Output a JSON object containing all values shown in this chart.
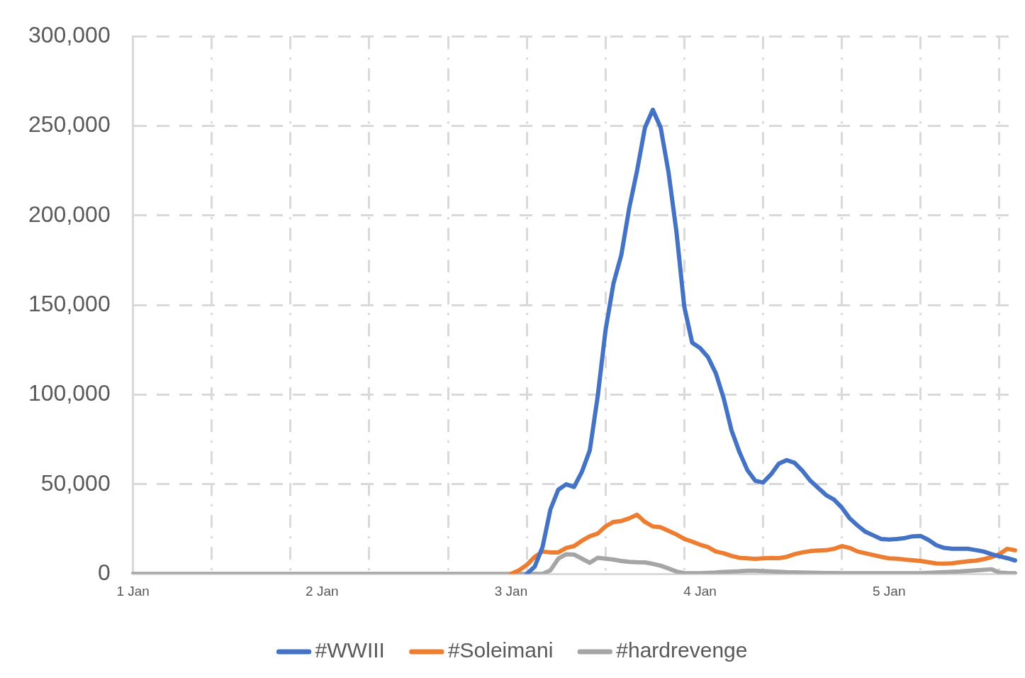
{
  "chart_data": {
    "type": "line",
    "ylim": [
      0,
      300000
    ],
    "categories": [
      "1 Jan",
      null,
      null,
      null,
      null,
      null,
      null,
      null,
      null,
      null,
      null,
      null,
      null,
      null,
      null,
      null,
      null,
      null,
      null,
      null,
      null,
      null,
      null,
      null,
      "2 Jan",
      null,
      null,
      null,
      null,
      null,
      null,
      null,
      null,
      null,
      null,
      null,
      null,
      null,
      null,
      null,
      null,
      null,
      null,
      null,
      null,
      null,
      null,
      null,
      "3 Jan",
      null,
      null,
      null,
      null,
      null,
      null,
      null,
      null,
      null,
      null,
      null,
      null,
      null,
      null,
      null,
      null,
      null,
      null,
      null,
      null,
      null,
      null,
      null,
      "4 Jan",
      null,
      null,
      null,
      null,
      null,
      null,
      null,
      null,
      null,
      null,
      null,
      null,
      null,
      null,
      null,
      null,
      null,
      null,
      null,
      null,
      null,
      null,
      null,
      "5 Jan",
      null,
      null,
      null,
      null,
      null,
      null,
      null,
      null,
      null,
      null,
      null,
      null,
      null,
      null,
      null,
      null
    ],
    "yticks": [
      {
        "value": 0,
        "label": "0"
      },
      {
        "value": 50000,
        "label": "50,000"
      },
      {
        "value": 100000,
        "label": "100,000"
      },
      {
        "value": 150000,
        "label": "150,000"
      },
      {
        "value": 200000,
        "label": "200,000"
      },
      {
        "value": 250000,
        "label": "250,000"
      },
      {
        "value": 300000,
        "label": "300,000"
      }
    ],
    "grid": true,
    "legend": "bottom",
    "line_style": "solid",
    "marker": "none",
    "series": [
      {
        "name": "#WWIII",
        "color": "#4472c4",
        "values": [
          null,
          null,
          null,
          null,
          null,
          null,
          null,
          null,
          null,
          null,
          null,
          null,
          null,
          null,
          null,
          null,
          null,
          null,
          null,
          null,
          null,
          null,
          null,
          null,
          null,
          null,
          null,
          null,
          null,
          null,
          null,
          null,
          null,
          null,
          null,
          null,
          null,
          null,
          null,
          null,
          null,
          null,
          null,
          null,
          null,
          null,
          null,
          null,
          null,
          null,
          0,
          4000,
          15000,
          36000,
          47000,
          50000,
          48500,
          57000,
          69000,
          99000,
          136000,
          162000,
          178000,
          204000,
          225000,
          249000,
          259000,
          249000,
          224000,
          191000,
          149000,
          129000,
          126000,
          121000,
          112000,
          98000,
          80000,
          68000,
          58000,
          52000,
          51000,
          55500,
          61500,
          63500,
          62000,
          57500,
          52000,
          48000,
          44000,
          41500,
          37000,
          31000,
          27000,
          23500,
          21500,
          19500,
          19200,
          19500,
          20000,
          21000,
          21200,
          19000,
          16000,
          14500,
          14000,
          14000,
          14000,
          13300,
          12500,
          11000,
          9800,
          8800,
          7500
        ]
      },
      {
        "name": "#Soleimani",
        "color": "#ed7d31",
        "values": [
          null,
          null,
          null,
          null,
          null,
          null,
          null,
          null,
          null,
          null,
          null,
          null,
          null,
          null,
          null,
          null,
          null,
          null,
          null,
          null,
          null,
          null,
          null,
          null,
          null,
          null,
          null,
          null,
          null,
          null,
          null,
          null,
          null,
          null,
          null,
          null,
          null,
          null,
          null,
          null,
          null,
          null,
          null,
          null,
          null,
          null,
          null,
          null,
          0,
          2000,
          5000,
          9500,
          12500,
          12000,
          12000,
          14500,
          15500,
          18500,
          21000,
          22500,
          26500,
          29000,
          29500,
          31000,
          33000,
          29000,
          26500,
          26000,
          24000,
          22000,
          19500,
          18000,
          16300,
          15000,
          12500,
          11500,
          10000,
          9000,
          8700,
          8400,
          8700,
          8900,
          8800,
          9500,
          11000,
          12000,
          12700,
          13000,
          13200,
          14000,
          15500,
          14500,
          12500,
          11500,
          10500,
          9500,
          8700,
          8500,
          8000,
          7600,
          7200,
          6500,
          5800,
          5700,
          5900,
          6500,
          7000,
          7400,
          8200,
          9300,
          11000,
          14000,
          13200
        ]
      },
      {
        "name": "#hardrevenge",
        "color": "#a5a5a5",
        "values": [
          0,
          0,
          0,
          0,
          0,
          0,
          0,
          0,
          0,
          0,
          0,
          0,
          0,
          0,
          0,
          0,
          0,
          0,
          0,
          0,
          0,
          0,
          0,
          0,
          0,
          0,
          0,
          0,
          0,
          0,
          0,
          0,
          0,
          0,
          0,
          0,
          0,
          0,
          0,
          0,
          0,
          0,
          0,
          0,
          0,
          0,
          0,
          0,
          0,
          0,
          0,
          0,
          0,
          2000,
          8500,
          11000,
          10800,
          8500,
          6200,
          9000,
          8500,
          8000,
          7200,
          6700,
          6500,
          6400,
          5600,
          4600,
          3000,
          1300,
          400,
          400,
          400,
          600,
          800,
          1100,
          1300,
          1500,
          1800,
          1800,
          1600,
          1400,
          1200,
          1000,
          900,
          800,
          700,
          600,
          500,
          500,
          400,
          400,
          400,
          400,
          400,
          400,
          400,
          400,
          400,
          400,
          400,
          600,
          800,
          1000,
          1200,
          1400,
          1700,
          2000,
          2300,
          2600,
          800,
          500,
          400
        ]
      }
    ]
  }
}
